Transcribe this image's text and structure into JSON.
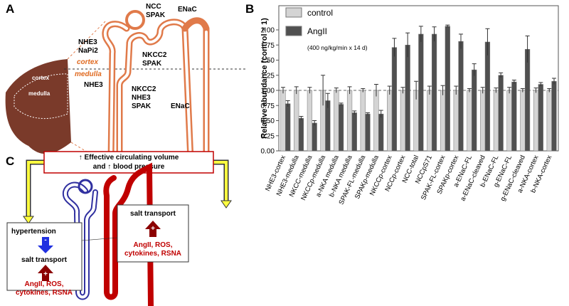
{
  "panel_a": {
    "label": "A",
    "kidney_labels": [
      "cortex",
      "medulla"
    ],
    "zone_labels": [
      "cortex",
      "medulla"
    ],
    "ncc": [
      "NCC",
      "SPAK"
    ],
    "enac_top": "ENaC",
    "nhe3_napi2": [
      "NHE3",
      "NaPi2"
    ],
    "nkcc2_spak": [
      "NKCC2",
      "SPAK"
    ],
    "nhe3": "NHE3",
    "nkcc2_nhe3_spak": [
      "NKCC2",
      "NHE3",
      "SPAK"
    ],
    "enac_bottom": "ENaC"
  },
  "panel_c": {
    "label": "C",
    "box_title": [
      "↑ Effective circulating volume",
      "and ↑ blood pressure"
    ],
    "left_box": {
      "title": "hypertension",
      "sign_down": "-",
      "label": "salt transport",
      "sign_up": "+",
      "factors": [
        "AngII, ROS,",
        "cytokines, RSNA"
      ]
    },
    "right_box": {
      "title": "salt transport",
      "sign_up": "+",
      "factors": [
        "AngII, ROS,",
        "cytokines, RSNA"
      ]
    }
  },
  "chart_data": {
    "type": "bar",
    "panel_label": "B",
    "ylabel": "Relative abundance (control = 1)",
    "categories": [
      "NHE3-cortex",
      "NHE3-medulla",
      "NKCC-medulla",
      "NKCCp-medulla",
      "a-NKA medulla",
      "b-NKA medulla",
      "SPAK-FL-medulla",
      "SPAKp-medulla",
      "NKCCp-cortex",
      "NCCp-cortex",
      "NCC-total",
      "NCCpS71",
      "SPAK-FL-cortex",
      "SPAKp-cortex",
      "a-ENaC-FL",
      "a-ENaC-cleaved",
      "b-ENaC-FL",
      "g-ENaC-FL",
      "g-ENaC-cleaved",
      "a-NKA-cortex",
      "b-NKA-cortex"
    ],
    "series": [
      {
        "name": "control",
        "color": "#d4d4d4",
        "values": [
          1,
          1,
          1,
          1,
          1,
          1,
          1,
          1,
          1,
          1,
          1,
          1,
          1,
          1,
          1,
          1,
          1,
          1,
          1,
          1,
          1
        ],
        "errors": [
          0.05,
          0.06,
          0.05,
          0.25,
          0.04,
          0.06,
          0.03,
          0.1,
          0.07,
          0.05,
          0.15,
          0.07,
          0.08,
          0.07,
          0.03,
          0.05,
          0.04,
          0.05,
          0.03,
          0.04,
          0.03
        ]
      },
      {
        "name": "AngII",
        "color": "#505050",
        "values": [
          0.78,
          0.54,
          0.46,
          0.83,
          0.77,
          0.63,
          0.61,
          0.61,
          1.71,
          1.75,
          1.93,
          1.93,
          2.06,
          1.81,
          1.34,
          1.8,
          1.25,
          1.14,
          1.68,
          1.1,
          1.15
        ],
        "errors": [
          0.05,
          0.03,
          0.04,
          0.12,
          0.02,
          0.03,
          0.02,
          0.06,
          0.15,
          0.2,
          0.13,
          0.12,
          0.02,
          0.12,
          0.1,
          0.22,
          0.04,
          0.03,
          0.22,
          0.03,
          0.05
        ]
      }
    ],
    "legend_note": "(400 ng/kg/min x 14 d)",
    "reference_line": 1,
    "ylim": [
      0,
      2.4
    ],
    "yticks": [
      {
        "value": 0,
        "label": "0.00"
      },
      {
        "value": 0.25,
        "label": "0.25"
      },
      {
        "value": 0.5,
        "label": "0.50"
      },
      {
        "value": 0.75,
        "label": "0.75"
      },
      {
        "value": 1,
        "label": "1.00"
      },
      {
        "value": 1.25,
        "label": "1.25"
      },
      {
        "value": 1.5,
        "label": "1.50"
      },
      {
        "value": 1.75,
        "label": "1.75"
      },
      {
        "value": 2,
        "label": "2.00"
      }
    ]
  }
}
